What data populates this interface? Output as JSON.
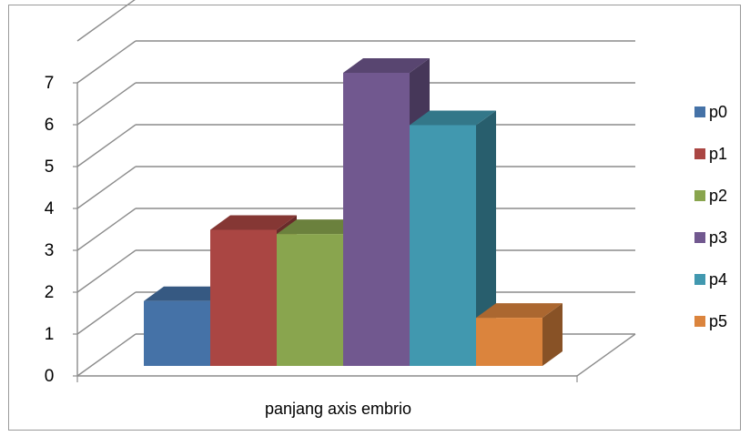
{
  "chart_data": {
    "type": "bar",
    "categories": [
      "panjang axis embrio"
    ],
    "series": [
      {
        "name": "p0",
        "values": [
          1.55
        ],
        "color": "#4572a7"
      },
      {
        "name": "p1",
        "values": [
          3.25
        ],
        "color": "#aa4643"
      },
      {
        "name": "p2",
        "values": [
          3.15
        ],
        "color": "#89a54e"
      },
      {
        "name": "p3",
        "values": [
          7.0
        ],
        "color": "#71588f"
      },
      {
        "name": "p4",
        "values": [
          5.75
        ],
        "color": "#4198af"
      },
      {
        "name": "p5",
        "values": [
          1.15
        ],
        "color": "#db843d"
      }
    ],
    "title": "",
    "xlabel": "",
    "ylabel": "",
    "ylim": [
      0,
      7
    ],
    "yticks": [
      "0",
      "1",
      "2",
      "3",
      "4",
      "5",
      "6",
      "7"
    ],
    "grid": true,
    "three_d": true,
    "legend_position": "right"
  }
}
